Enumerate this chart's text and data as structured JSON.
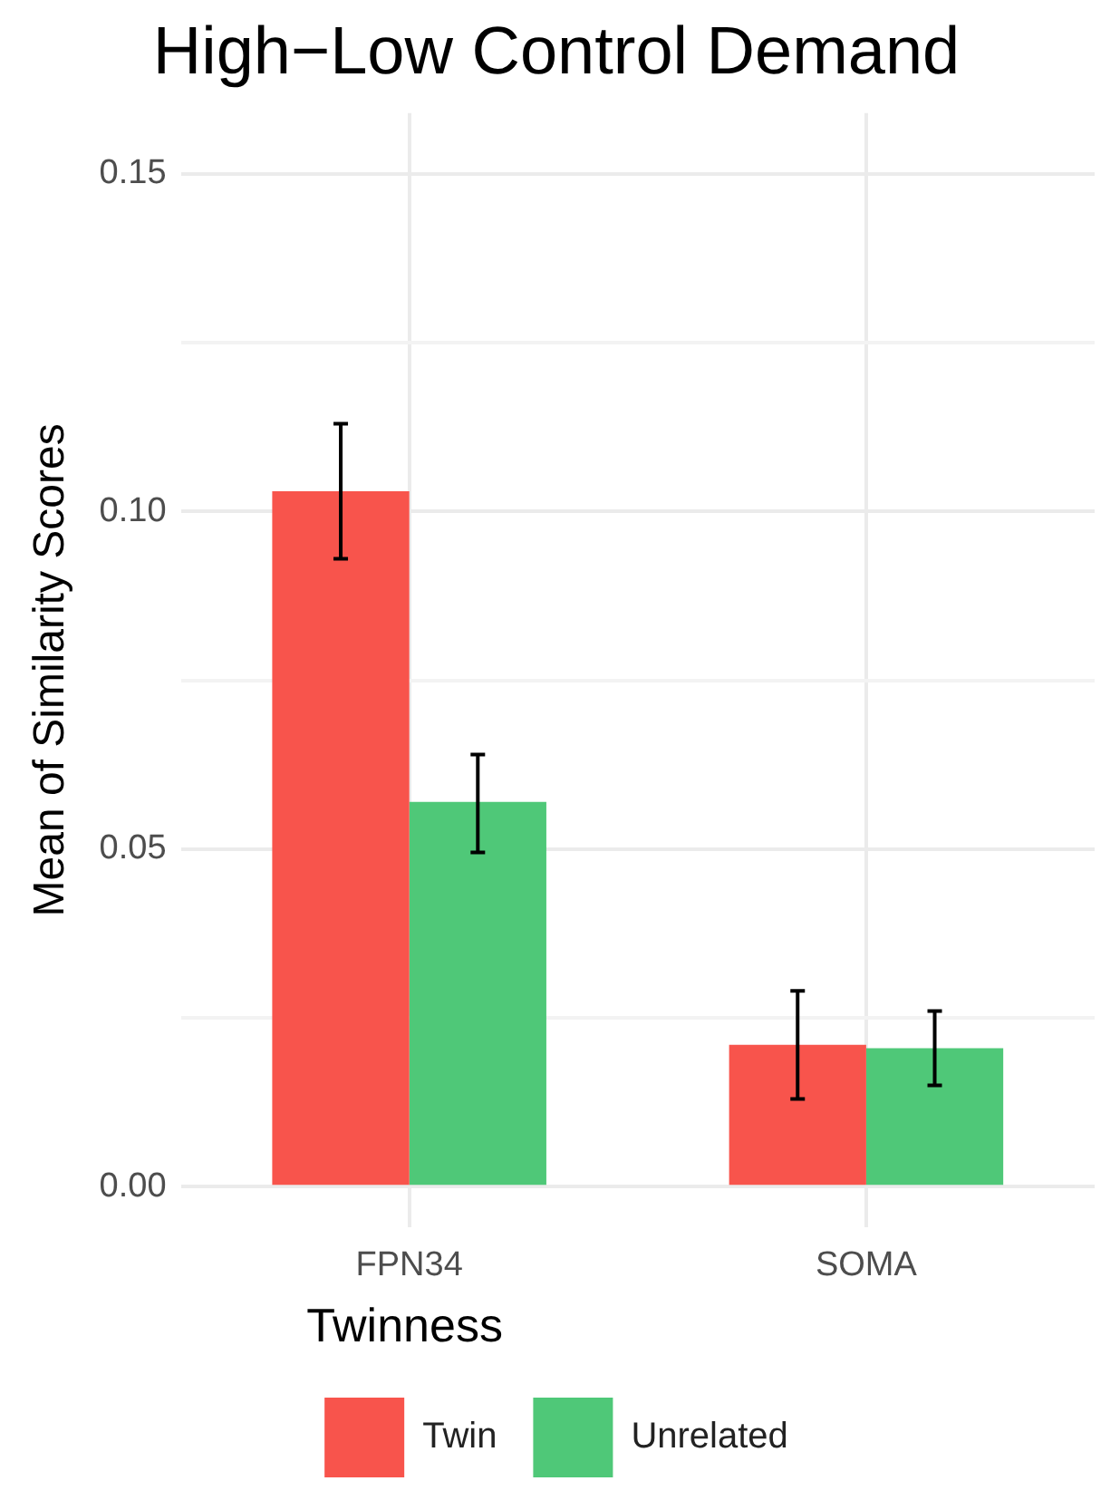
{
  "chart_data": {
    "type": "bar",
    "title": "High−Low Control Demand",
    "ylabel": "Mean of Similarity Scores",
    "legend_title": "Twinness",
    "categories": [
      "FPN34",
      "SOMA"
    ],
    "series": [
      {
        "name": "Twin",
        "color": "#f8544c",
        "values": [
          0.103,
          0.021
        ],
        "errors": [
          [
            0.093,
            0.113
          ],
          [
            0.013,
            0.029
          ]
        ]
      },
      {
        "name": "Unrelated",
        "color": "#4fc878",
        "values": [
          0.057,
          0.0205
        ],
        "errors": [
          [
            0.0495,
            0.064
          ],
          [
            0.015,
            0.026
          ]
        ]
      }
    ],
    "ylim": [
      -0.006,
      0.159
    ],
    "yticks": [
      {
        "value": 0,
        "label": "0.00"
      },
      {
        "value": 0.025,
        "label": null
      },
      {
        "value": 0.05,
        "label": "0.05"
      },
      {
        "value": 0.075,
        "label": null
      },
      {
        "value": 0.1,
        "label": "0.10"
      },
      {
        "value": 0.125,
        "label": null
      },
      {
        "value": 0.15,
        "label": "0.15"
      }
    ],
    "grid": true,
    "legend": "bottom"
  }
}
